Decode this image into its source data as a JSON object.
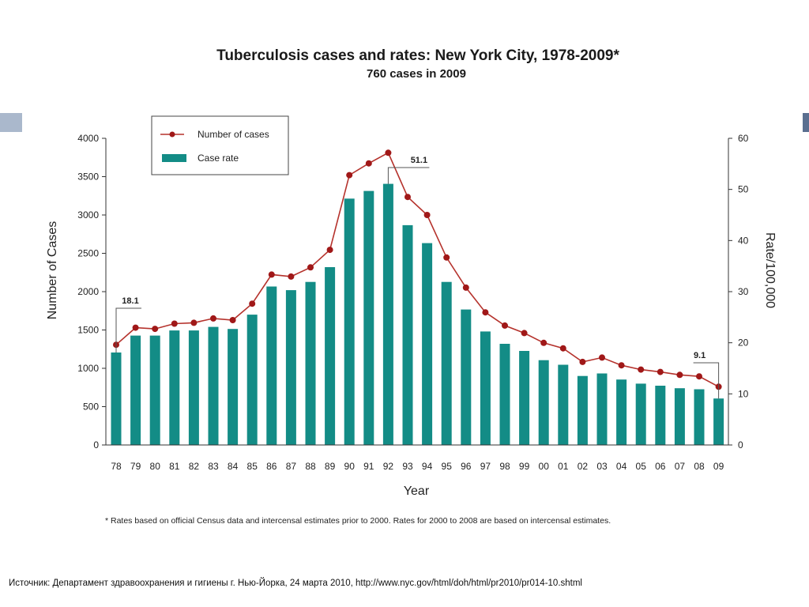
{
  "source_text": "Источник: Департамент здравоохранения и гигиены г. Нью-Йорка, 24 марта 2010, http://www.nyc.gov/html/doh/html/pr2010/pr014-10.shtml",
  "footnote": "* Rates based on official Census data and intercensal estimates prior to 2000. Rates for 2000 to 2008 are based on intercensal estimates.",
  "colors": {
    "bar": "#138c86",
    "line": "#b5322c",
    "marker": "#a01818",
    "axis": "#333333"
  },
  "chart_data": {
    "type": "bar",
    "title": "Tuberculosis cases and rates: New York City, 1978-2009*",
    "subtitle": "760 cases in 2009",
    "xlabel": "Year",
    "ylabel": "Number of Cases",
    "y2label": "Rate/100,000",
    "ylim": [
      0,
      4000
    ],
    "y2lim": [
      0,
      60
    ],
    "yticks": [
      "0",
      "500",
      "1000",
      "1500",
      "2000",
      "2500",
      "3000",
      "3500",
      "4000"
    ],
    "y2ticks": [
      "0",
      "10",
      "20",
      "30",
      "40",
      "50",
      "60"
    ],
    "grid": false,
    "legend_position": "top-left",
    "categories": [
      "78",
      "79",
      "80",
      "81",
      "82",
      "83",
      "84",
      "85",
      "86",
      "87",
      "88",
      "89",
      "90",
      "91",
      "92",
      "93",
      "94",
      "95",
      "96",
      "97",
      "98",
      "99",
      "00",
      "01",
      "02",
      "03",
      "04",
      "05",
      "06",
      "07",
      "08",
      "09"
    ],
    "series": [
      {
        "name": "Case rate",
        "type": "bar",
        "axis": "right",
        "values": [
          18.1,
          21.4,
          21.4,
          22.4,
          22.4,
          23.1,
          22.7,
          25.5,
          31,
          30.3,
          31.9,
          34.8,
          48.2,
          49.7,
          51.1,
          43,
          39.5,
          31.9,
          26.5,
          22.2,
          19.8,
          18.4,
          16.6,
          15.7,
          13.5,
          14,
          12.8,
          12,
          11.6,
          11.1,
          10.9,
          9.1
        ]
      },
      {
        "name": "Number of cases",
        "type": "line",
        "axis": "left",
        "values": [
          1307,
          1530,
          1514,
          1582,
          1594,
          1651,
          1629,
          1843,
          2223,
          2197,
          2317,
          2545,
          3520,
          3673,
          3811,
          3235,
          3000,
          2445,
          2053,
          1730,
          1558,
          1460,
          1332,
          1261,
          1084,
          1140,
          1039,
          984,
          953,
          914,
          895,
          760
        ]
      }
    ],
    "annotations": [
      {
        "label": "18.1",
        "category": "78"
      },
      {
        "label": "51.1",
        "category": "92"
      },
      {
        "label": "9.1",
        "category": "09"
      }
    ]
  }
}
